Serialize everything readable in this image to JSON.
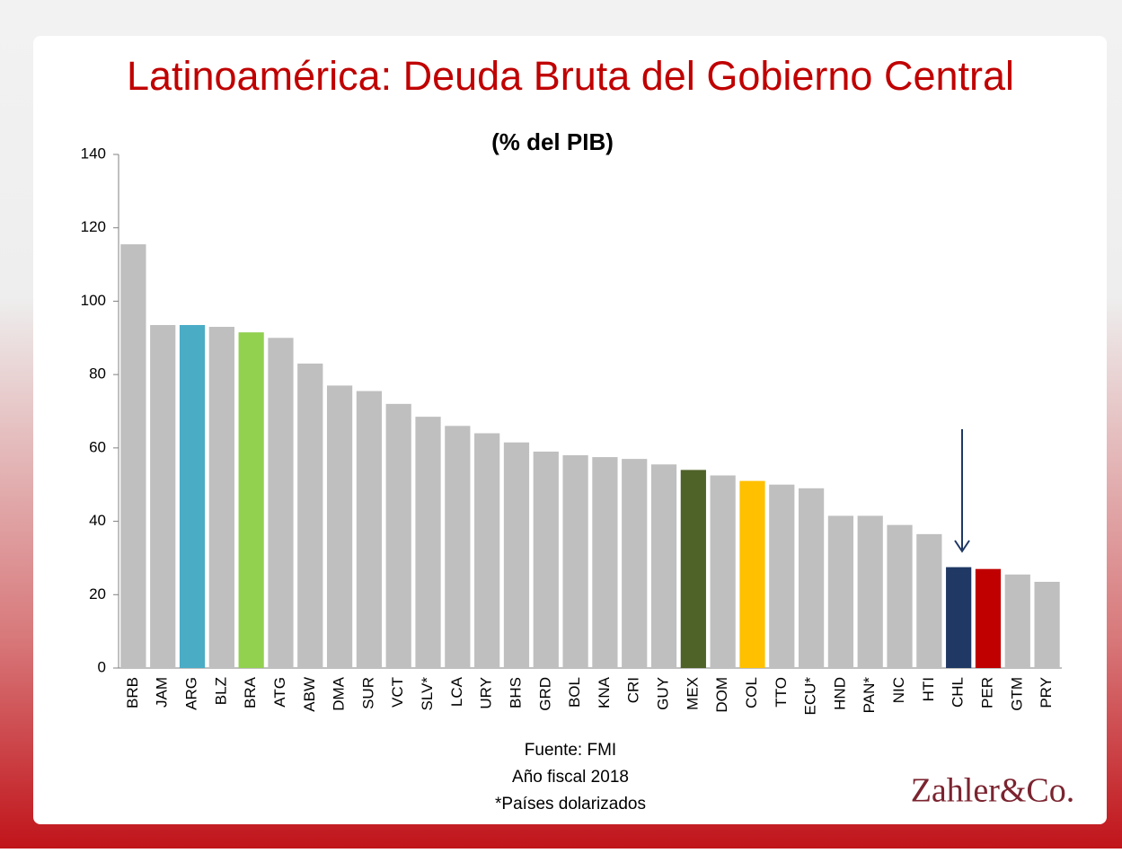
{
  "chart_data": {
    "type": "bar",
    "title": "Latinoamérica: Deuda Bruta del Gobierno Central",
    "subtitle": "(% del PIB)",
    "categories": [
      "BRB",
      "JAM",
      "ARG",
      "BLZ",
      "BRA",
      "ATG",
      "ABW",
      "DMA",
      "SUR",
      "VCT",
      "SLV*",
      "LCA",
      "URY",
      "BHS",
      "GRD",
      "BOL",
      "KNA",
      "CRI",
      "GUY",
      "MEX",
      "DOM",
      "COL",
      "TTO",
      "ECU*",
      "HND",
      "PAN*",
      "NIC",
      "HTI",
      "CHL",
      "PER",
      "GTM",
      "PRY"
    ],
    "values": [
      115.5,
      93.5,
      93.5,
      93,
      91.5,
      90,
      83,
      77,
      75.5,
      72,
      68.5,
      66,
      64,
      61.5,
      59,
      58,
      57.5,
      57,
      55.5,
      54,
      52.5,
      51,
      50,
      49,
      41.5,
      41.5,
      39,
      36.5,
      27.5,
      27,
      25.5,
      23.5
    ],
    "colors": [
      "#bfbfbf",
      "#bfbfbf",
      "#4bacc6",
      "#bfbfbf",
      "#92d050",
      "#bfbfbf",
      "#bfbfbf",
      "#bfbfbf",
      "#bfbfbf",
      "#bfbfbf",
      "#bfbfbf",
      "#bfbfbf",
      "#bfbfbf",
      "#bfbfbf",
      "#bfbfbf",
      "#bfbfbf",
      "#bfbfbf",
      "#bfbfbf",
      "#bfbfbf",
      "#4f6228",
      "#bfbfbf",
      "#ffc000",
      "#bfbfbf",
      "#bfbfbf",
      "#bfbfbf",
      "#bfbfbf",
      "#bfbfbf",
      "#bfbfbf",
      "#1f3864",
      "#c00000",
      "#bfbfbf",
      "#bfbfbf"
    ],
    "ylim": [
      0,
      140
    ],
    "yticks": [
      0,
      20,
      40,
      60,
      80,
      100,
      120,
      140
    ],
    "grid": false,
    "notes": [
      "Fuente: FMI",
      "Año fiscal 2018",
      "*Países dolarizados"
    ],
    "logo": "Zahler&Co."
  }
}
